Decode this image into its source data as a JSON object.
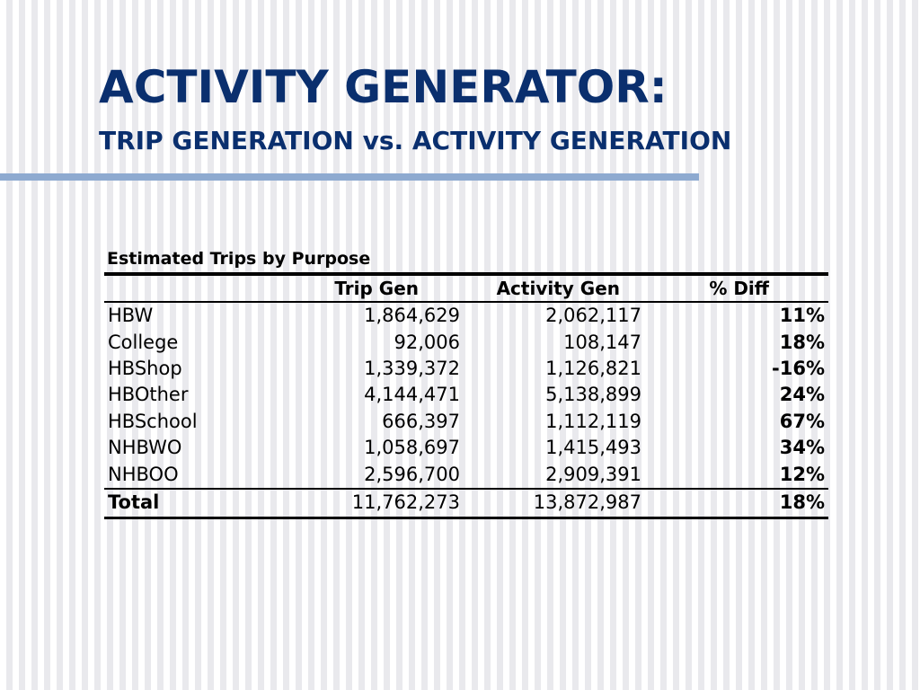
{
  "slide": {
    "title": "ACTIVITY GENERATOR:",
    "subtitle": "TRIP GENERATION vs. ACTIVITY GENERATION"
  },
  "table": {
    "caption": "Estimated Trips by Purpose",
    "headers": [
      "",
      "Trip Gen",
      "Activity Gen",
      "% Diff"
    ],
    "rows": [
      {
        "purpose": "HBW",
        "trip_gen": "1,864,629",
        "activity_gen": "2,062,117",
        "pct_diff": "11%"
      },
      {
        "purpose": "College",
        "trip_gen": "92,006",
        "activity_gen": "108,147",
        "pct_diff": "18%"
      },
      {
        "purpose": "HBShop",
        "trip_gen": "1,339,372",
        "activity_gen": "1,126,821",
        "pct_diff": "-16%"
      },
      {
        "purpose": "HBOther",
        "trip_gen": "4,144,471",
        "activity_gen": "5,138,899",
        "pct_diff": "24%"
      },
      {
        "purpose": "HBSchool",
        "trip_gen": "666,397",
        "activity_gen": "1,112,119",
        "pct_diff": "67%"
      },
      {
        "purpose": "NHBWO",
        "trip_gen": "1,058,697",
        "activity_gen": "1,415,493",
        "pct_diff": "34%"
      },
      {
        "purpose": "NHBOO",
        "trip_gen": "2,596,700",
        "activity_gen": "2,909,391",
        "pct_diff": "12%"
      }
    ],
    "total": {
      "purpose": "Total",
      "trip_gen": "11,762,273",
      "activity_gen": "13,872,987",
      "pct_diff": "18%"
    }
  },
  "colors": {
    "title": "#0a2f6e",
    "rule": "#8eaad0"
  }
}
